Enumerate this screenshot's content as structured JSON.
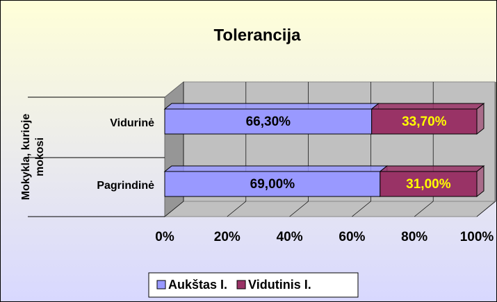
{
  "chart_data": {
    "type": "bar3d_stacked_h",
    "title": "Tolerancija",
    "ylabel": [
      "Mokykla, kurioje",
      "mokosi"
    ],
    "categories": [
      "Vidurinė",
      "Pagrindinė"
    ],
    "series": [
      {
        "name": "Aukštas I.",
        "color": "#9999ff",
        "label_color": "#000000",
        "values": [
          66.3,
          69.0
        ],
        "value_labels": [
          "66,30%",
          "69,00%"
        ]
      },
      {
        "name": "Vidutinis I.",
        "color": "#993366",
        "label_color": "#ffff00",
        "values": [
          33.7,
          31.0
        ],
        "value_labels": [
          "33,70%",
          "31,00%"
        ]
      }
    ],
    "xlim": [
      0,
      100
    ],
    "xticks": [
      {
        "value": 0,
        "label": "0%"
      },
      {
        "value": 20,
        "label": "20%"
      },
      {
        "value": 40,
        "label": "40%"
      },
      {
        "value": 60,
        "label": "60%"
      },
      {
        "value": 80,
        "label": "80%"
      },
      {
        "value": 100,
        "label": "100%"
      }
    ],
    "grid": true,
    "legend": "bottom"
  }
}
